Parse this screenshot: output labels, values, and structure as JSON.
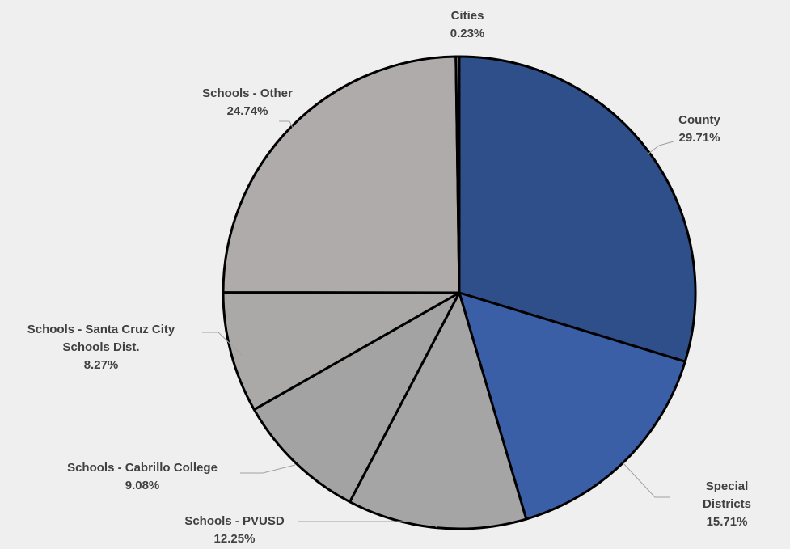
{
  "chart_data": {
    "type": "pie",
    "categories": [
      "County",
      "Special Districts",
      "Schools - PVUSD",
      "Schools - Cabrillo College",
      "Schools - Santa Cruz City Schools Dist.",
      "Schools - Other",
      "Cities"
    ],
    "values": [
      29.71,
      15.71,
      12.25,
      9.08,
      8.27,
      24.74,
      0.23
    ],
    "value_labels": [
      "29.71%",
      "15.71%",
      "12.25%",
      "9.08%",
      "8.27%",
      "24.74%",
      "0.23%"
    ],
    "colors": [
      "#2f4f8b",
      "#3a5fa6",
      "#a5a5a5",
      "#a3a3a3",
      "#aba9a8",
      "#afabab",
      "#afabab"
    ]
  }
}
